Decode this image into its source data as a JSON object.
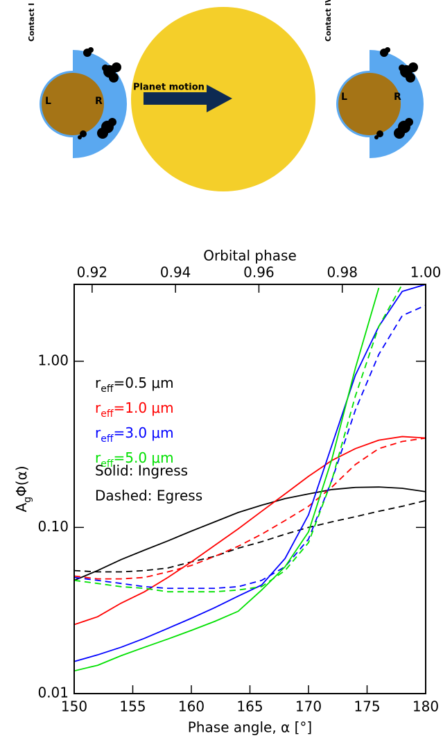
{
  "diagram": {
    "left_label": "Contact I",
    "right_label": "Contact IV",
    "left_side": "L",
    "right_side": "R",
    "arrow_label": "Planet motion"
  },
  "chart_data": {
    "type": "line",
    "top_axis_label": "Orbital phase",
    "x_label": "Phase angle, α [°]",
    "y_label": "AgΦ(α)",
    "notes": [
      "Solid: Ingress",
      "Dashed: Egress"
    ],
    "x": [
      150,
      152,
      154,
      156,
      158,
      160,
      162,
      164,
      166,
      168,
      170,
      172,
      174,
      176,
      178,
      180
    ],
    "xlim": [
      150,
      180
    ],
    "xticks": [
      150,
      155,
      160,
      165,
      170,
      175,
      180
    ],
    "x2lim": [
      0.9157,
      1.0
    ],
    "x2ticks": [
      0.92,
      0.94,
      0.96,
      0.98,
      {
        "value": 1.0,
        "label": "1.00"
      }
    ],
    "ylim": [
      0.01,
      2.9
    ],
    "ylog": true,
    "yticks": [
      0.01,
      {
        "value": 0.1,
        "label": "0.10"
      },
      {
        "value": 1.0,
        "label": "1.00"
      }
    ],
    "series": [
      {
        "name": "reff=0.5 μm",
        "color": "#000000",
        "values": [
          0.048,
          0.055,
          0.064,
          0.073,
          0.083,
          0.095,
          0.108,
          0.123,
          0.136,
          0.149,
          0.159,
          0.169,
          0.174,
          0.175,
          0.172,
          0.164
        ],
        "egress_values": [
          0.055,
          0.054,
          0.054,
          0.055,
          0.057,
          0.062,
          0.067,
          0.075,
          0.082,
          0.091,
          0.1,
          0.108,
          0.116,
          0.125,
          0.134,
          0.145
        ]
      },
      {
        "name": "reff=1.0 μm",
        "color": "#ff0000",
        "values": [
          0.026,
          0.029,
          0.035,
          0.041,
          0.05,
          0.062,
          0.078,
          0.098,
          0.125,
          0.159,
          0.203,
          0.253,
          0.298,
          0.335,
          0.352,
          0.345
        ],
        "egress_values": [
          0.051,
          0.049,
          0.049,
          0.05,
          0.054,
          0.059,
          0.067,
          0.077,
          0.091,
          0.11,
          0.134,
          0.175,
          0.239,
          0.298,
          0.329,
          0.345
        ]
      },
      {
        "name": "reff=3.0 μm",
        "color": "#0000ff",
        "values": [
          0.0156,
          0.0171,
          0.019,
          0.0215,
          0.0247,
          0.0284,
          0.0329,
          0.0386,
          0.045,
          0.065,
          0.119,
          0.313,
          0.824,
          1.62,
          2.63,
          2.9
        ],
        "egress_values": [
          0.05,
          0.048,
          0.046,
          0.044,
          0.043,
          0.043,
          0.043,
          0.044,
          0.048,
          0.058,
          0.085,
          0.193,
          0.508,
          1.1,
          1.88,
          2.17
        ]
      },
      {
        "name": "reff=5.0 μm",
        "color": "#00e000",
        "values": [
          0.0137,
          0.0148,
          0.0169,
          0.019,
          0.0213,
          0.024,
          0.0272,
          0.0313,
          0.042,
          0.058,
          0.094,
          0.258,
          0.908,
          2.76,
          null,
          null
        ],
        "egress_values": [
          0.048,
          0.046,
          0.044,
          0.043,
          0.041,
          0.041,
          0.041,
          0.042,
          0.044,
          0.055,
          0.081,
          0.193,
          0.617,
          1.62,
          2.9,
          null
        ]
      }
    ]
  }
}
